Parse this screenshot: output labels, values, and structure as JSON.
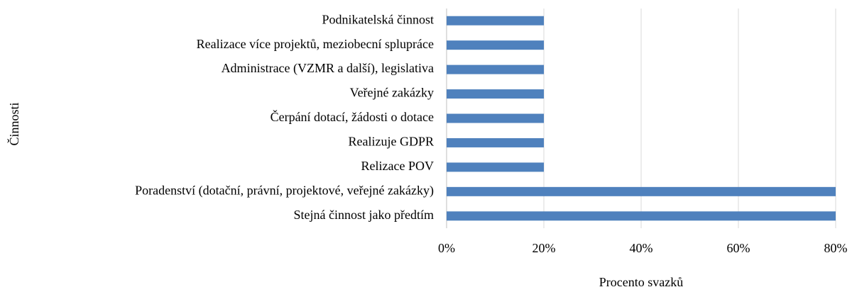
{
  "chart_data": {
    "type": "bar",
    "orientation": "horizontal",
    "categories": [
      "Podnikatelská činnost",
      "Realizace více projektů, meziobecní splupráce",
      "Administrace (VZMR a další), legislativa",
      "Veřejné zakázky",
      "Čerpání dotací, žádosti o dotace",
      "Realizuje GDPR",
      "Relizace POV",
      "Poradenství (dotační, právní, projektové, veřejné zakázky)",
      "Stejná činnost jako předtím"
    ],
    "values": [
      20,
      20,
      20,
      20,
      20,
      20,
      20,
      80,
      80
    ],
    "color": "#4f81bd",
    "xlim": [
      0,
      80
    ],
    "xticks": [
      {
        "value": 0,
        "label": "0%"
      },
      {
        "value": 20,
        "label": "20%"
      },
      {
        "value": 40,
        "label": "40%"
      },
      {
        "value": 60,
        "label": "60%"
      },
      {
        "value": 80,
        "label": "80%"
      }
    ],
    "xlabel": "Procento svazků",
    "ylabel": "Činnosti",
    "grid": true
  }
}
